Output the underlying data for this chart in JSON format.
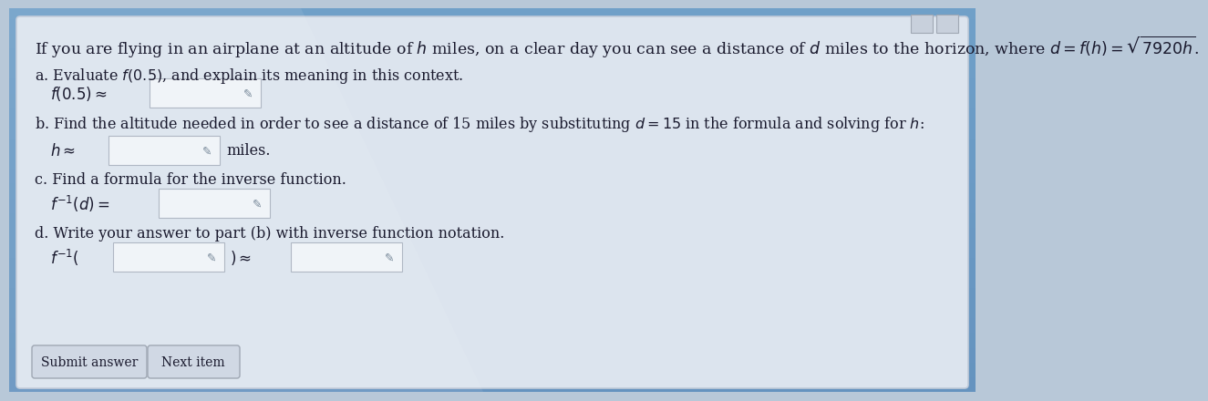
{
  "bg_color": "#b8c8d8",
  "card_bg": "#dce4ee",
  "card_edge": "#c0cad8",
  "input_bg": "#f0f4f8",
  "input_edge": "#b0b8c4",
  "btn_bg": "#d0d8e4",
  "btn_edge": "#a0a8b4",
  "text_dark": "#1a1a2e",
  "text_mid": "#2a2a3e",
  "corner_box_bg": "#c8d0dc",
  "corner_box_edge": "#a0a8b4",
  "title": "If you are flying in an airplane at an altitude of $\\mathit{h}$ miles, on a clear day you can see a distance of $\\mathit{d}$ miles to the horizon, where $d = f(h) = \\sqrt{7920h}$.",
  "part_a": "a. Evaluate $f(0.5)$, and explain its meaning in this context.",
  "part_a_expr": "$f(0.5) \\approx$",
  "part_b": "b. Find the altitude needed in order to see a distance of 15 miles by substituting $d = 15$ in the formula and solving for $\\mathit{h}$:",
  "part_b_expr": "$h \\approx$",
  "part_b_suffix": "miles.",
  "part_c": "c. Find a formula for the inverse function.",
  "part_c_expr": "$f^{-1}(d) =$",
  "part_d": "d. Write your answer to part (b) with inverse function notation.",
  "part_d_expr": "$f^{-1}($",
  "part_d_mid": "$) \\approx$",
  "btn1": "Submit answer",
  "btn2": "Next item",
  "fs_title": 12.5,
  "fs_body": 11.5,
  "fs_expr": 12.0,
  "fs_btn": 10.0
}
